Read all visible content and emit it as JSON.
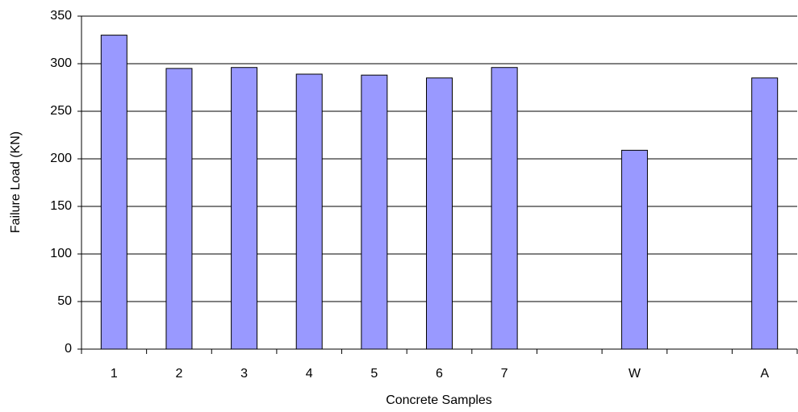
{
  "chart_data": {
    "type": "bar",
    "x_label": "Concrete Samples",
    "y_label": "Failure Load (KN)",
    "categories": [
      "1",
      "2",
      "3",
      "4",
      "5",
      "6",
      "7",
      null,
      "W",
      null,
      "A"
    ],
    "values": [
      330,
      295,
      296,
      289,
      288,
      285,
      296,
      null,
      209,
      null,
      285
    ],
    "color": "#9999ff",
    "ylim": [
      0,
      350
    ],
    "yticks": [
      0,
      50,
      100,
      150,
      200,
      250,
      300,
      350
    ],
    "grid": true
  }
}
